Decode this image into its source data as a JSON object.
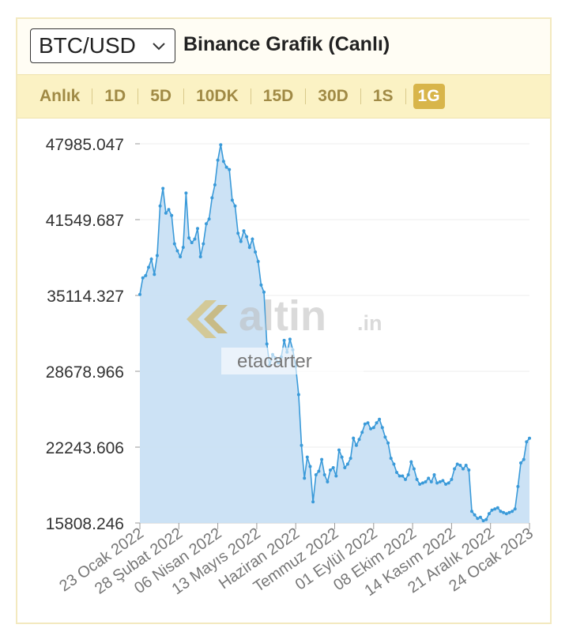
{
  "header": {
    "pair_select": {
      "value": "BTC/USD",
      "icon": "chevron-down-icon"
    },
    "title": "Binance Grafik (Canlı)"
  },
  "tabs": [
    {
      "label": "Anlık",
      "active": false
    },
    {
      "label": "1D",
      "active": false
    },
    {
      "label": "5D",
      "active": false
    },
    {
      "label": "10DK",
      "active": false
    },
    {
      "label": "15D",
      "active": false
    },
    {
      "label": "30D",
      "active": false
    },
    {
      "label": "1S",
      "active": false
    },
    {
      "label": "1G",
      "active": true
    }
  ],
  "colors": {
    "line": "#3a9ad9",
    "area": "#c6dff4",
    "accent": "#d8b54a",
    "tab_text": "#a08a45",
    "tabs_bg": "#fbf2c4"
  },
  "watermark": {
    "brand": "altin",
    "suffix": ".in",
    "user": "etacarter"
  },
  "chart_data": {
    "type": "area",
    "title": "",
    "xlabel": "",
    "ylabel": "",
    "ylim": [
      15808.246,
      47985.047
    ],
    "y_ticks": [
      "47985.047",
      "41549.687",
      "35114.327",
      "28678.966",
      "22243.606",
      "15808.246"
    ],
    "x_ticks": [
      "23 Ocak 2022",
      "28 Şubat 2022",
      "06 Nisan 2022",
      "13 Mayıs 2022",
      "Haziran 2022",
      "Temmuz 2022",
      "01 Eylül 2022",
      "08 Ekim 2022",
      "14 Kasım 2022",
      "21 Aralık 2022",
      "24 Ocak 2023"
    ],
    "grid": true,
    "series": [
      {
        "values": [
          35200,
          36600,
          36800,
          37500,
          38200,
          36900,
          38500,
          42700,
          44200,
          42100,
          42400,
          41900,
          39500,
          38900,
          38400,
          39200,
          43800,
          40000,
          39600,
          39900,
          40800,
          38400,
          39500,
          41200,
          41600,
          43400,
          44500,
          46600,
          47900,
          46500,
          46000,
          45800,
          43200,
          42700,
          40400,
          39700,
          40600,
          40100,
          39200,
          39900,
          38800,
          38000,
          36000,
          35400,
          31000,
          29200,
          30100,
          29800,
          29400,
          29900,
          31300,
          30300,
          31400,
          30500,
          29100,
          26700,
          22400,
          19600,
          21400,
          20600,
          17600,
          19900,
          20200,
          21200,
          19900,
          19300,
          20300,
          20500,
          19800,
          22000,
          21400,
          20500,
          20800,
          21300,
          23000,
          22400,
          22900,
          23500,
          24200,
          24300,
          23800,
          23900,
          24300,
          24600,
          23900,
          23100,
          22600,
          21300,
          20800,
          20100,
          19800,
          19800,
          19500,
          19900,
          21000,
          20400,
          19500,
          19100,
          19200,
          19300,
          19600,
          19300,
          19900,
          19200,
          19300,
          19400,
          19100,
          19200,
          19500,
          20400,
          20800,
          20700,
          20400,
          20700,
          20300,
          16800,
          16500,
          16200,
          16300,
          16000,
          16100,
          16600,
          16900,
          17000,
          17100,
          16800,
          16700,
          16600,
          16700,
          16800,
          17000,
          18900,
          20900,
          21200,
          22700,
          23000
        ]
      }
    ]
  }
}
